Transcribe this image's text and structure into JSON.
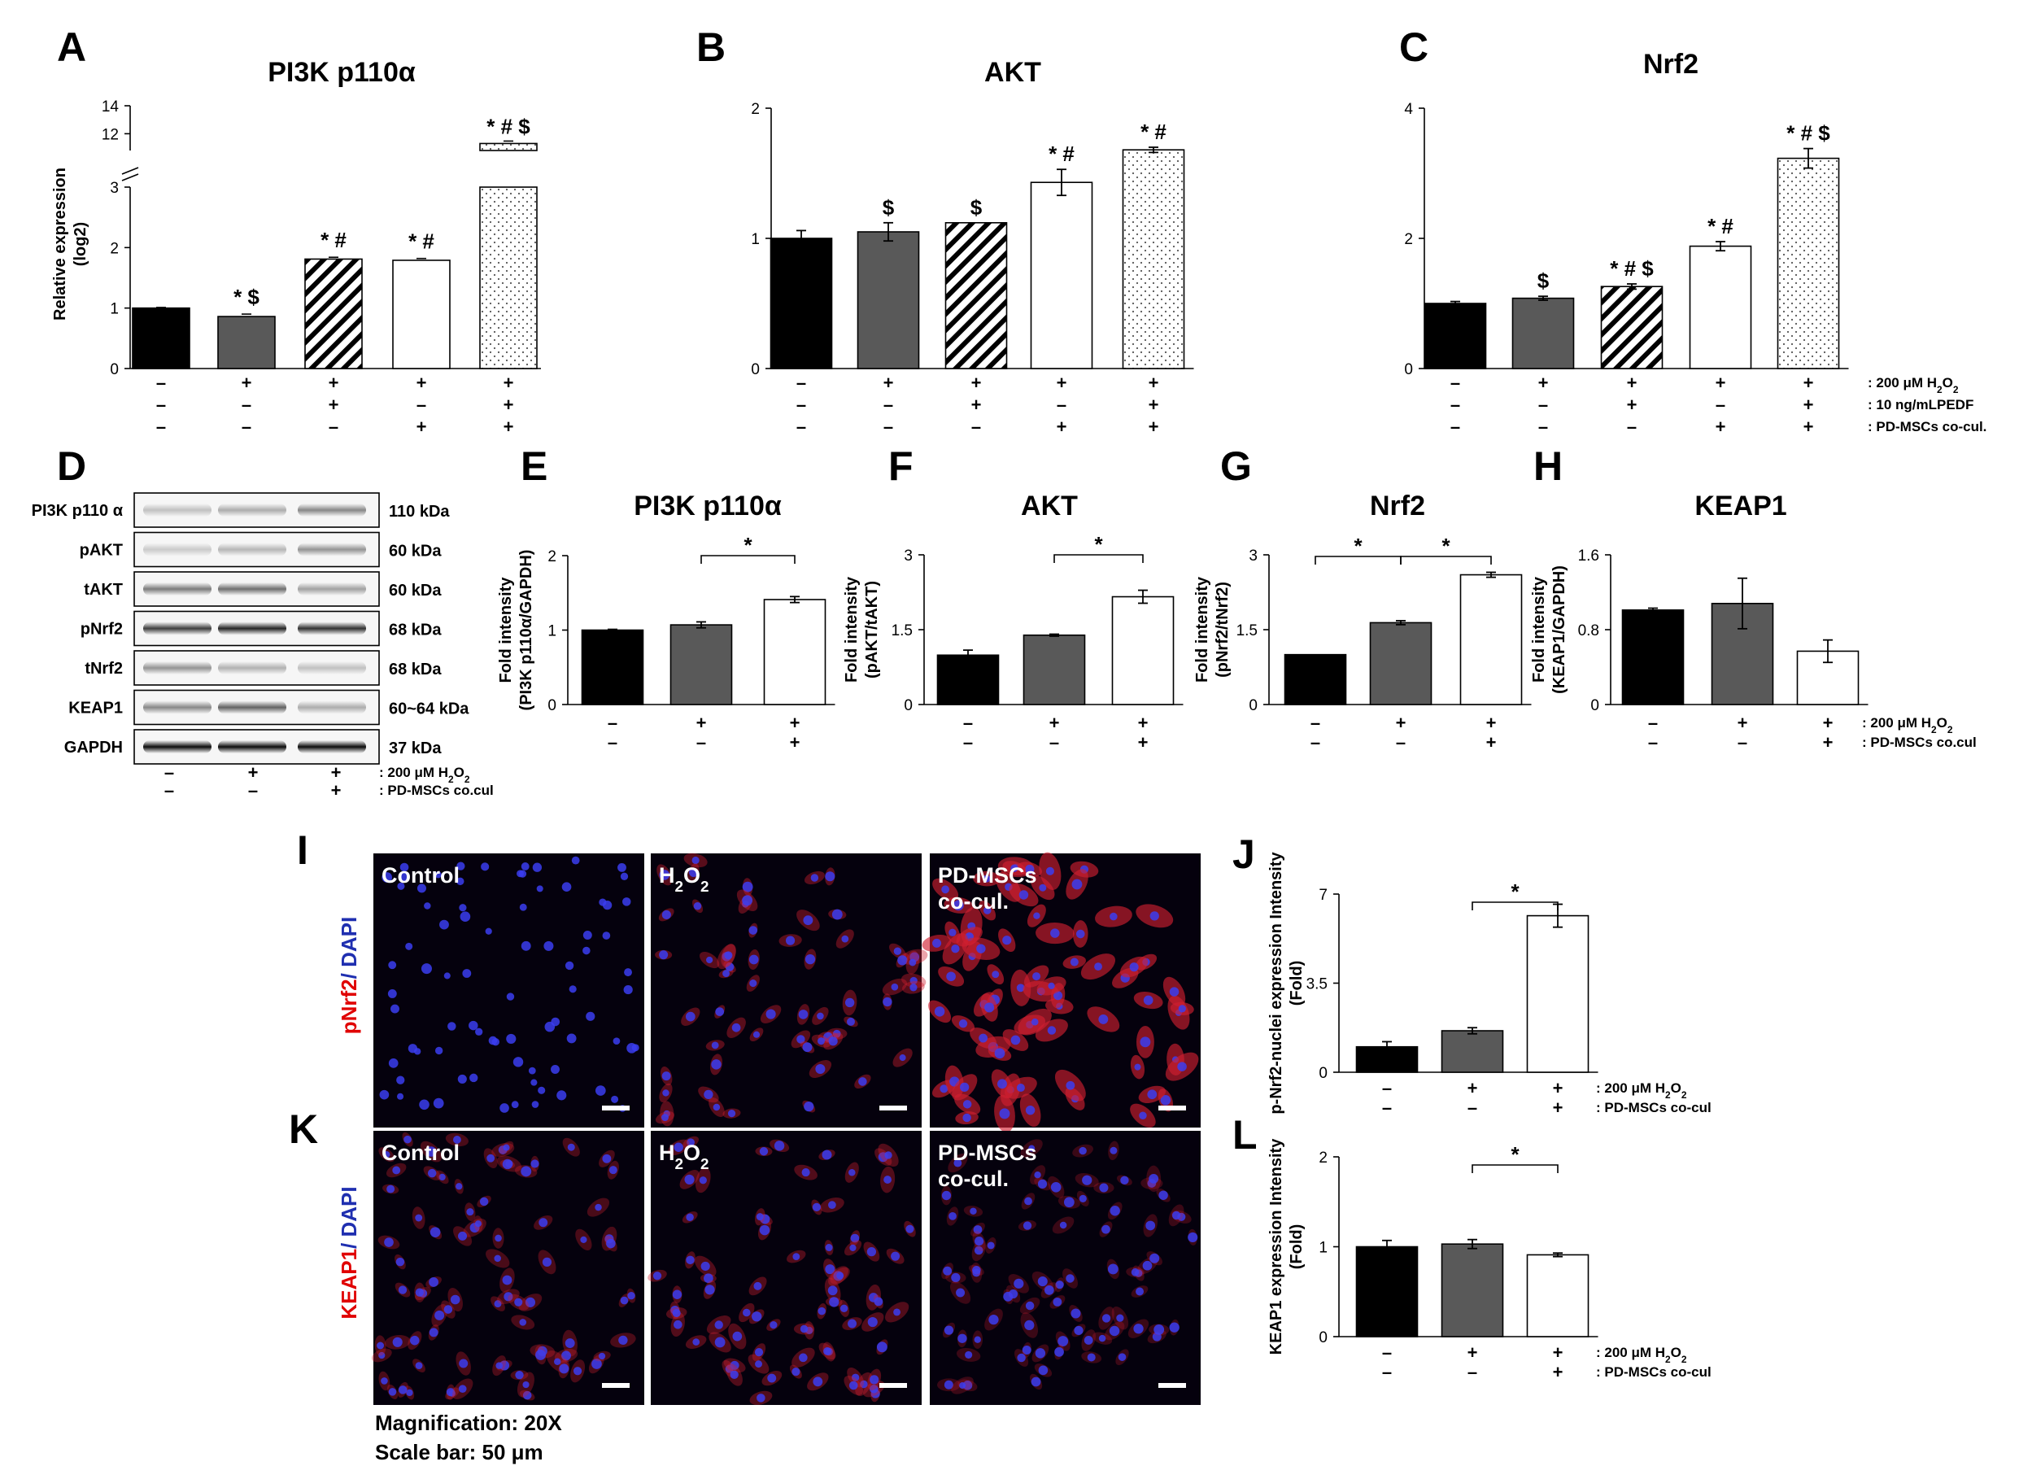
{
  "panel_labels": [
    "A",
    "B",
    "C",
    "D",
    "E",
    "F",
    "G",
    "H",
    "I",
    "J",
    "K",
    "L"
  ],
  "chart_data": [
    {
      "id": "A",
      "type": "bar",
      "title": "PI3K p110α",
      "ylabel": "Relative expression (log2)",
      "y_axis": "broken",
      "ylim_lower": [
        0,
        3
      ],
      "ylim_upper": [
        10.8,
        14
      ],
      "yticks_lower": [
        0,
        1,
        2,
        3
      ],
      "yticks_upper": [
        12,
        14
      ],
      "values": [
        1.0,
        0.86,
        1.81,
        1.79,
        11.3
      ],
      "errors": [
        0.01,
        0.04,
        0.03,
        0.03,
        0.08
      ],
      "fills": [
        "black",
        "gray",
        "hatch",
        "white",
        "dots"
      ],
      "annotations": [
        "",
        "*$",
        "*#",
        "*#",
        "*#$"
      ]
    },
    {
      "id": "B",
      "type": "bar",
      "title": "AKT",
      "ylim": [
        0,
        2
      ],
      "yticks": [
        0,
        1,
        2
      ],
      "values": [
        1.0,
        1.05,
        1.12,
        1.43,
        1.68
      ],
      "errors": [
        0.06,
        0.07,
        0.0,
        0.1,
        0.02
      ],
      "fills": [
        "black",
        "gray",
        "hatch",
        "white",
        "dots"
      ],
      "annotations": [
        "",
        "$",
        "$",
        "*#",
        "*#"
      ]
    },
    {
      "id": "C",
      "type": "bar",
      "title": "Nrf2",
      "ylim": [
        0,
        4
      ],
      "yticks": [
        0,
        2,
        4
      ],
      "values": [
        1.0,
        1.08,
        1.26,
        1.88,
        3.23
      ],
      "errors": [
        0.03,
        0.03,
        0.04,
        0.07,
        0.15
      ],
      "fills": [
        "black",
        "gray",
        "hatch",
        "white",
        "dots"
      ],
      "annotations": [
        "",
        "$",
        "*#$",
        "*#",
        "*#$"
      ]
    },
    {
      "id": "E",
      "type": "bar",
      "title": "PI3K p110α",
      "ylabel": "Fold intensity (PI3K p110α/GAPDH)",
      "ylim": [
        0,
        2
      ],
      "yticks": [
        0,
        1,
        2
      ],
      "values": [
        1.0,
        1.07,
        1.41
      ],
      "errors": [
        0.01,
        0.04,
        0.04
      ],
      "fills": [
        "black",
        "gray",
        "white"
      ],
      "sig_brackets": [
        [
          1,
          2
        ]
      ]
    },
    {
      "id": "F",
      "type": "bar",
      "title": "AKT",
      "ylabel": "Fold intensity (pAKT/tAKT)",
      "ylim": [
        0,
        3
      ],
      "yticks": [
        0,
        1.5,
        3
      ],
      "values": [
        0.99,
        1.39,
        2.16
      ],
      "errors": [
        0.1,
        0.02,
        0.13
      ],
      "fills": [
        "black",
        "gray",
        "white"
      ],
      "sig_brackets": [
        [
          1,
          2
        ]
      ]
    },
    {
      "id": "G",
      "type": "bar",
      "title": "Nrf2",
      "ylabel": "Fold intensity (pNrf2/tNrf2)",
      "ylim": [
        0,
        3
      ],
      "yticks": [
        0,
        1.5,
        3
      ],
      "values": [
        1.0,
        1.64,
        2.6
      ],
      "errors": [
        0.0,
        0.04,
        0.05
      ],
      "fills": [
        "black",
        "gray",
        "white"
      ],
      "sig_brackets": [
        [
          0,
          1
        ],
        [
          1,
          2
        ]
      ]
    },
    {
      "id": "H",
      "type": "bar",
      "title": "KEAP1",
      "ylabel": "Fold intensity (KEAP1/GAPDH)",
      "ylim": [
        0,
        1.6
      ],
      "yticks": [
        0,
        0.8,
        1.6
      ],
      "values": [
        1.01,
        1.08,
        0.57
      ],
      "errors": [
        0.02,
        0.27,
        0.12
      ],
      "fills": [
        "black",
        "gray",
        "white"
      ],
      "sig_brackets": []
    },
    {
      "id": "J",
      "type": "bar",
      "ylabel": "p-Nrf2-nuclei expression Intensity (Fold)",
      "ylim": [
        0,
        7
      ],
      "yticks": [
        0,
        3.5,
        7
      ],
      "values": [
        1.0,
        1.63,
        6.15
      ],
      "errors": [
        0.2,
        0.12,
        0.45
      ],
      "fills": [
        "black",
        "gray",
        "white"
      ],
      "sig_brackets": [
        [
          1,
          2
        ]
      ]
    },
    {
      "id": "L",
      "type": "bar",
      "ylabel": "KEAP1 expression Intensity (Fold)",
      "ylim": [
        0,
        2
      ],
      "yticks": [
        0,
        1,
        2
      ],
      "values": [
        1.0,
        1.03,
        0.91
      ],
      "errors": [
        0.07,
        0.05,
        0.02
      ],
      "fills": [
        "black",
        "gray",
        "white"
      ],
      "sig_brackets": [
        [
          1,
          2
        ]
      ]
    }
  ],
  "conditions": {
    "abc": {
      "rows": [
        {
          "signs": [
            "–",
            "+",
            "+",
            "+",
            "+"
          ],
          "label": ": 200 μM H",
          "sub": "2",
          "label2": "O",
          "sub2": "2"
        },
        {
          "signs": [
            "–",
            "–",
            "+",
            "–",
            "+"
          ],
          "label": ": 10 ng/mLPEDF"
        },
        {
          "signs": [
            "–",
            "–",
            "–",
            "+",
            "+"
          ],
          "label": ": PD-MSCs co-cul."
        }
      ]
    },
    "d": {
      "rows": [
        {
          "signs": [
            "–",
            "+",
            "+"
          ],
          "label": ": 200 μM H",
          "sub": "2",
          "label2": "O",
          "sub2": "2"
        },
        {
          "signs": [
            "–",
            "–",
            "+"
          ],
          "label": ": PD-MSCs co.cul"
        }
      ]
    },
    "eh": {
      "rows": [
        {
          "signs": [
            "–",
            "+",
            "+"
          ],
          "label": ": 200 μM H",
          "sub": "2",
          "label2": "O",
          "sub2": "2"
        },
        {
          "signs": [
            "–",
            "–",
            "+"
          ],
          "label": ": PD-MSCs co.cul"
        }
      ]
    },
    "jl": {
      "rows": [
        {
          "signs": [
            "–",
            "+",
            "+"
          ],
          "label": ": 200 μM H",
          "sub": "2",
          "label2": "O",
          "sub2": "2"
        },
        {
          "signs": [
            "–",
            "–",
            "+"
          ],
          "label": ": PD-MSCs co-cul"
        }
      ]
    }
  },
  "western_blot": {
    "rows": [
      {
        "protein": "PI3K p110 α",
        "kda": "110 kDa",
        "intensity": [
          0.22,
          0.3,
          0.45
        ]
      },
      {
        "protein": "pAKT",
        "kda": "60 kDa",
        "intensity": [
          0.18,
          0.26,
          0.4
        ]
      },
      {
        "protein": "tAKT",
        "kda": "60 kDa",
        "intensity": [
          0.5,
          0.55,
          0.35
        ]
      },
      {
        "protein": "pNrf2",
        "kda": "68 kDa",
        "intensity": [
          0.75,
          0.85,
          0.8
        ]
      },
      {
        "protein": "tNrf2",
        "kda": "68 kDa",
        "intensity": [
          0.4,
          0.28,
          0.22
        ]
      },
      {
        "protein": "KEAP1",
        "kda": "60~64 kDa",
        "intensity": [
          0.45,
          0.6,
          0.3
        ]
      },
      {
        "protein": "GAPDH",
        "kda": "37 kDa",
        "intensity": [
          0.95,
          0.95,
          0.95
        ]
      }
    ]
  },
  "microscopy": {
    "row_labels": [
      {
        "stain": "pNrf2",
        "counter": "/ DAPI"
      },
      {
        "stain": "KEAP1",
        "counter": "/ DAPI"
      }
    ],
    "columns": [
      {
        "line1": "Control",
        "line2": ""
      },
      {
        "line1": "H",
        "sub": "2",
        "line1b": "O",
        "sub2": "2",
        "line2": ""
      },
      {
        "line1": "PD-MSCs",
        "line2": "co-cul."
      }
    ],
    "magnification": "Magnification: 20X",
    "scale_bar": "Scale bar: 50 μm"
  }
}
